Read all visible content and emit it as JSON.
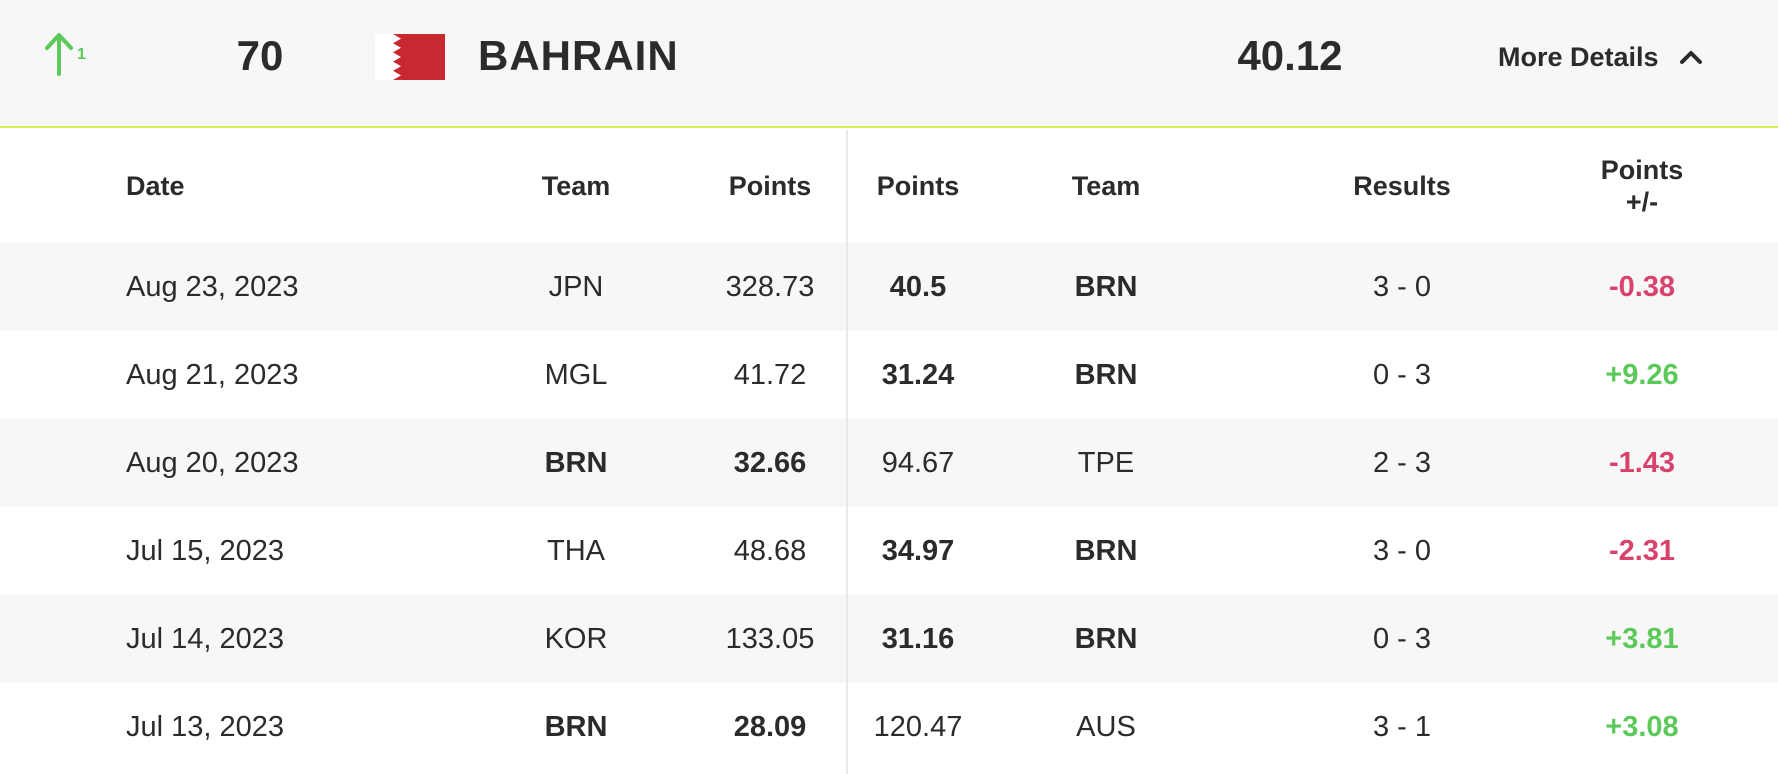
{
  "header": {
    "trend_icon": "arrow-up-icon",
    "trend_value": "1",
    "rank": "70",
    "flag": "bahrain-flag",
    "country": "BAHRAIN",
    "score": "40.12",
    "details_label": "More Details",
    "details_icon": "chevron-up-icon"
  },
  "colors": {
    "positive": "#5cc95a",
    "negative": "#d9426a",
    "accent_line": "#d9ec4d",
    "flag_red": "#c8282f"
  },
  "columns": {
    "date": "Date",
    "team1": "Team",
    "points1": "Points",
    "points2": "Points",
    "team2": "Team",
    "results": "Results",
    "diff_line1": "Points",
    "diff_line2": "+/-"
  },
  "rows": [
    {
      "date": "Aug 23, 2023",
      "team1": "JPN",
      "points1": "328.73",
      "points2": "40.5",
      "team2": "BRN",
      "result": "3 - 0",
      "diff": "-0.38",
      "brn_side": "right",
      "sign": "neg"
    },
    {
      "date": "Aug 21, 2023",
      "team1": "MGL",
      "points1": "41.72",
      "points2": "31.24",
      "team2": "BRN",
      "result": "0 - 3",
      "diff": "+9.26",
      "brn_side": "right",
      "sign": "pos"
    },
    {
      "date": "Aug 20, 2023",
      "team1": "BRN",
      "points1": "32.66",
      "points2": "94.67",
      "team2": "TPE",
      "result": "2 - 3",
      "diff": "-1.43",
      "brn_side": "left",
      "sign": "neg"
    },
    {
      "date": "Jul 15, 2023",
      "team1": "THA",
      "points1": "48.68",
      "points2": "34.97",
      "team2": "BRN",
      "result": "3 - 0",
      "diff": "-2.31",
      "brn_side": "right",
      "sign": "neg"
    },
    {
      "date": "Jul 14, 2023",
      "team1": "KOR",
      "points1": "133.05",
      "points2": "31.16",
      "team2": "BRN",
      "result": "0 - 3",
      "diff": "+3.81",
      "brn_side": "right",
      "sign": "pos"
    },
    {
      "date": "Jul 13, 2023",
      "team1": "BRN",
      "points1": "28.09",
      "points2": "120.47",
      "team2": "AUS",
      "result": "3 - 1",
      "diff": "+3.08",
      "brn_side": "left",
      "sign": "pos"
    }
  ]
}
